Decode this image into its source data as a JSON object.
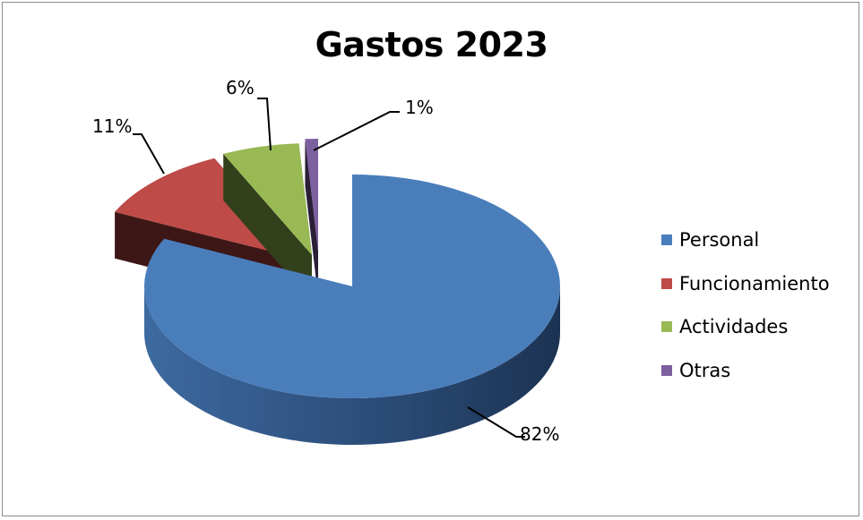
{
  "chart_data": {
    "type": "pie",
    "title": "Gastos 2023",
    "categories": [
      "Personal",
      "Funcionamiento",
      "Actividades",
      "Otras"
    ],
    "values": [
      82,
      11,
      6,
      1
    ],
    "data_labels": [
      "82%",
      "11%",
      "6%",
      "1%"
    ],
    "unit": "%",
    "style": "3d-exploded",
    "legend_position": "right",
    "colors": {
      "Personal": "#4a7ebb",
      "Funcionamiento": "#be4b48",
      "Actividades": "#98b954",
      "Otras": "#7d60a0"
    }
  }
}
